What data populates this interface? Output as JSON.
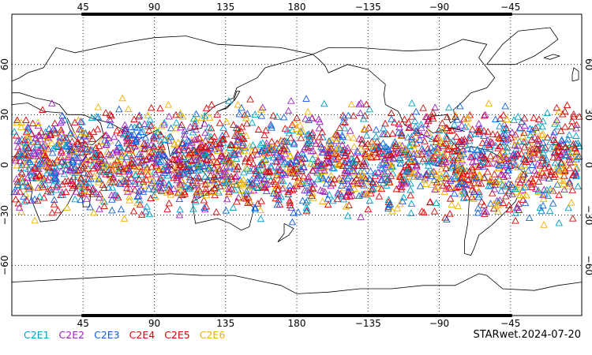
{
  "map": {
    "lon_ticks": [
      45,
      90,
      135,
      180,
      -135,
      -90,
      -45
    ],
    "lon_tick_labels": [
      "45",
      "90",
      "135",
      "180",
      "−135",
      "−90",
      "−45"
    ],
    "lat_ticks": [
      60,
      30,
      0,
      -30,
      -60
    ],
    "lat_tick_labels": [
      "60",
      "30",
      "0",
      "−30",
      "−60"
    ],
    "lon_range": [
      0,
      360
    ],
    "lat_range": [
      -90,
      90
    ],
    "grid": "dotted",
    "projection": "equirectangular, centered 180"
  },
  "legend": {
    "items": [
      {
        "label": "C2E1",
        "color": "#00a0c8"
      },
      {
        "label": "C2E2",
        "color": "#a020c0"
      },
      {
        "label": "C2E3",
        "color": "#1060e0"
      },
      {
        "label": "C2E4",
        "color": "#c81010"
      },
      {
        "label": "C2E5",
        "color": "#e00000"
      },
      {
        "label": "C2E6",
        "color": "#f0b000"
      }
    ]
  },
  "footer": {
    "title": "STARwet.2024-07-20"
  },
  "observations": {
    "marker": "open-triangle",
    "lat_band": [
      -40,
      45
    ],
    "density_note": "dense tropical band"
  }
}
